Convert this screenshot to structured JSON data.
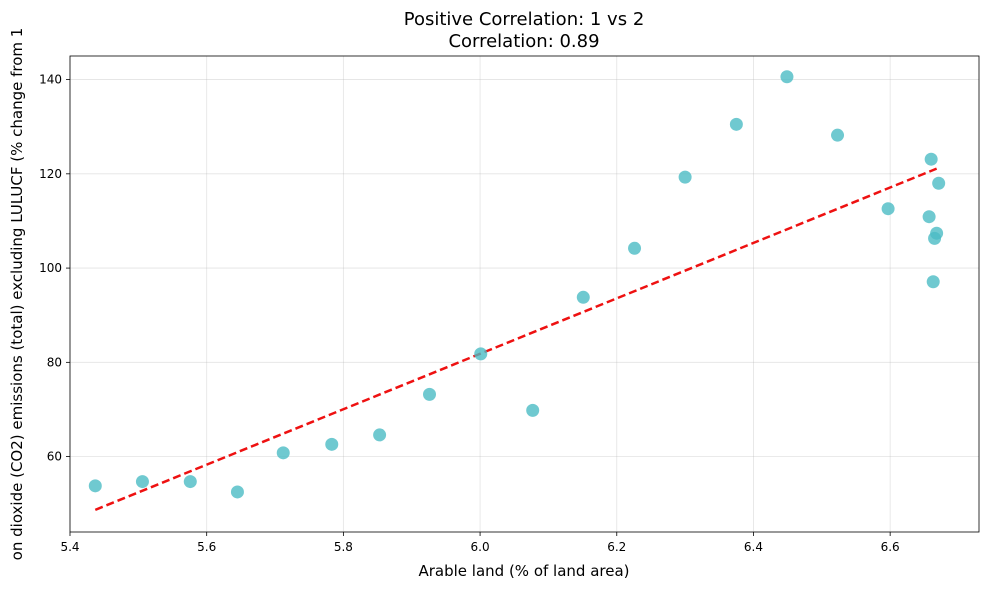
{
  "chart_data": {
    "type": "scatter",
    "title": "Positive Correlation: 1 vs 2",
    "subtitle": "Correlation: 0.89",
    "xlabel": "Arable land (% of land area)",
    "ylabel": "on dioxide (CO2) emissions (total) excluding LULUCF (% change from 1",
    "xlim": [
      5.4,
      6.73
    ],
    "ylim": [
      44,
      145
    ],
    "xticks": [
      5.4,
      5.6,
      5.8,
      6.0,
      6.2,
      6.4,
      6.6
    ],
    "xtick_labels": [
      "5.4",
      "5.6",
      "5.8",
      "6.0",
      "6.2",
      "6.4",
      "6.6"
    ],
    "yticks": [
      60,
      80,
      100,
      120,
      140
    ],
    "ytick_labels": [
      "60",
      "80",
      "100",
      "120",
      "140"
    ],
    "grid": true,
    "colors": {
      "points": "#4bbcc4",
      "trend": "#ee1111"
    },
    "points": [
      {
        "x": 5.437,
        "y": 53.8
      },
      {
        "x": 5.506,
        "y": 54.7
      },
      {
        "x": 5.576,
        "y": 54.7
      },
      {
        "x": 5.645,
        "y": 52.5
      },
      {
        "x": 5.712,
        "y": 60.8
      },
      {
        "x": 5.783,
        "y": 62.6
      },
      {
        "x": 5.853,
        "y": 64.6
      },
      {
        "x": 5.926,
        "y": 73.2
      },
      {
        "x": 6.001,
        "y": 81.8
      },
      {
        "x": 6.077,
        "y": 69.8
      },
      {
        "x": 6.151,
        "y": 93.8
      },
      {
        "x": 6.226,
        "y": 104.2
      },
      {
        "x": 6.3,
        "y": 119.3
      },
      {
        "x": 6.375,
        "y": 130.5
      },
      {
        "x": 6.449,
        "y": 140.6
      },
      {
        "x": 6.523,
        "y": 128.2
      },
      {
        "x": 6.597,
        "y": 112.6
      },
      {
        "x": 6.657,
        "y": 110.9
      },
      {
        "x": 6.66,
        "y": 123.1
      },
      {
        "x": 6.663,
        "y": 97.1
      },
      {
        "x": 6.665,
        "y": 106.3
      },
      {
        "x": 6.668,
        "y": 107.4
      },
      {
        "x": 6.671,
        "y": 118.0
      }
    ],
    "trendline": {
      "x": [
        5.437,
        6.668
      ],
      "y": [
        48.7,
        121.1
      ]
    }
  }
}
